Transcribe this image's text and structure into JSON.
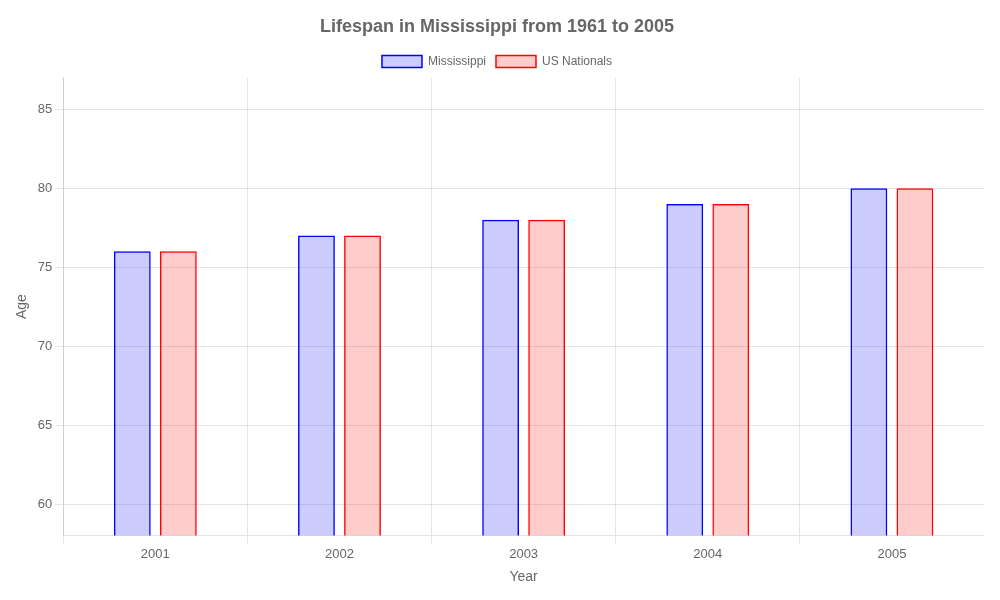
{
  "chart_data": {
    "type": "bar",
    "title": "Lifespan in Mississippi from 1961 to 2005",
    "categories": [
      "2001",
      "2002",
      "2003",
      "2004",
      "2005"
    ],
    "series": [
      {
        "name": "Mississippi",
        "color": "#0000ff",
        "values": [
          76,
          77,
          78,
          79,
          80
        ]
      },
      {
        "name": "US Nationals",
        "color": "#ff0000",
        "values": [
          76,
          77,
          78,
          79,
          80
        ]
      }
    ],
    "x_label": "Year",
    "y_label": "Age",
    "ylim": [
      58,
      87
    ],
    "yticks": [
      60,
      65,
      70,
      75,
      80,
      85
    ],
    "grid": true,
    "legend": "top"
  }
}
